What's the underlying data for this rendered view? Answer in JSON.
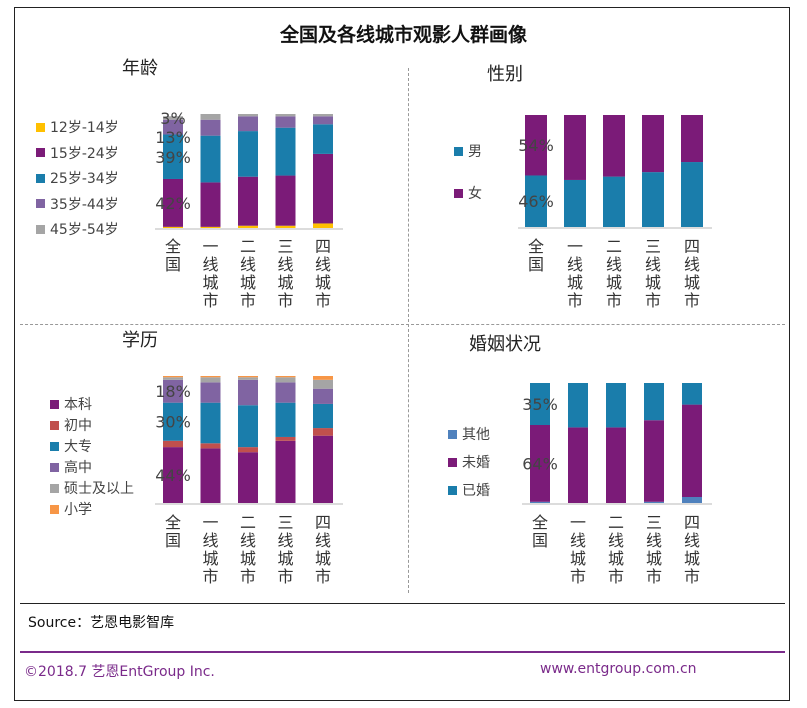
{
  "title": "全国及各线城市观影人群画像",
  "source": "Source：艺恩电影智库",
  "footer": {
    "left": "©2018.7  艺恩EntGroup Inc.",
    "right": "www.entgroup.com.cn"
  },
  "colors": {
    "purple": "#7b1b78",
    "blue": "#1a7dab",
    "lavender": "#8064a2",
    "gray": "#a5a5a5",
    "yellow": "#ffc000",
    "red": "#c0504d",
    "orange": "#f79646",
    "lightblue": "#4f81bd",
    "footer": "#7a2a8a"
  },
  "chart_data": [
    {
      "type": "bar",
      "stacked": true,
      "title": "年龄",
      "legend_position": "left",
      "categories": [
        "全国",
        "一线城市",
        "二线城市",
        "三线城市",
        "四线城市"
      ],
      "series": [
        {
          "name": "12岁-14岁",
          "color": "#ffc000",
          "values": [
            1,
            1,
            2,
            2,
            4
          ]
        },
        {
          "name": "15岁-24岁",
          "color": "#7b1b78",
          "values": [
            42,
            39,
            43,
            44,
            61
          ]
        },
        {
          "name": "25岁-34岁",
          "color": "#1a7dab",
          "values": [
            39,
            41,
            40,
            42,
            26
          ]
        },
        {
          "name": "35岁-44岁",
          "color": "#8064a2",
          "values": [
            13,
            14,
            13,
            10,
            7
          ]
        },
        {
          "name": "45岁-54岁",
          "color": "#a5a5a5",
          "values": [
            3,
            5,
            2,
            2,
            2
          ]
        }
      ],
      "data_labels": [
        {
          "series": "45岁-54岁",
          "category": "全国",
          "text": "3%"
        },
        {
          "series": "35岁-44岁",
          "category": "全国",
          "text": "13%"
        },
        {
          "series": "25岁-34岁",
          "category": "全国",
          "text": "39%"
        },
        {
          "series": "15岁-24岁",
          "category": "全国",
          "text": "42%"
        }
      ],
      "ylim": [
        0,
        100
      ]
    },
    {
      "type": "bar",
      "stacked": true,
      "title": "性别",
      "legend_position": "left",
      "categories": [
        "全国",
        "一线城市",
        "二线城市",
        "三线城市",
        "四线城市"
      ],
      "series": [
        {
          "name": "男",
          "color": "#1a7dab",
          "values": [
            46,
            42,
            45,
            49,
            58
          ]
        },
        {
          "name": "女",
          "color": "#7b1b78",
          "values": [
            54,
            58,
            55,
            51,
            42
          ]
        }
      ],
      "data_labels": [
        {
          "series": "女",
          "category": "全国",
          "text": "54%"
        },
        {
          "series": "男",
          "category": "全国",
          "text": "46%"
        }
      ],
      "ylim": [
        0,
        100
      ]
    },
    {
      "type": "bar",
      "stacked": true,
      "title": "学历",
      "legend_position": "left",
      "categories": [
        "全国",
        "一线城市",
        "二线城市",
        "三线城市",
        "四线城市"
      ],
      "series": [
        {
          "name": "本科",
          "color": "#7b1b78",
          "values": [
            44,
            43,
            40,
            49,
            53
          ]
        },
        {
          "name": "初中",
          "color": "#c0504d",
          "values": [
            5,
            4,
            4,
            3,
            6
          ]
        },
        {
          "name": "大专",
          "color": "#1a7dab",
          "values": [
            30,
            32,
            33,
            27,
            19
          ]
        },
        {
          "name": "高中",
          "color": "#8064a2",
          "values": [
            18,
            16,
            20,
            16,
            12
          ]
        },
        {
          "name": "硕士及以上",
          "color": "#a5a5a5",
          "values": [
            2,
            4,
            2,
            4,
            7
          ]
        },
        {
          "name": "小学",
          "color": "#f79646",
          "values": [
            1,
            1,
            1,
            1,
            3
          ]
        }
      ],
      "data_labels": [
        {
          "series": "高中",
          "category": "全国",
          "text": "18%"
        },
        {
          "series": "大专",
          "category": "全国",
          "text": "30%"
        },
        {
          "series": "本科",
          "category": "全国",
          "text": "44%"
        }
      ],
      "ylim": [
        0,
        100
      ]
    },
    {
      "type": "bar",
      "stacked": true,
      "title": "婚姻状况",
      "legend_position": "left",
      "categories": [
        "全国",
        "一线城市",
        "二线城市",
        "三线城市",
        "四线城市"
      ],
      "series": [
        {
          "name": "其他",
          "color": "#4f81bd",
          "values": [
            1,
            0,
            0,
            1,
            5
          ]
        },
        {
          "name": "未婚",
          "color": "#7b1b78",
          "values": [
            64,
            63,
            63,
            68,
            77
          ]
        },
        {
          "name": "已婚",
          "color": "#1a7dab",
          "values": [
            35,
            37,
            37,
            31,
            18
          ]
        }
      ],
      "data_labels": [
        {
          "series": "已婚",
          "category": "全国",
          "text": "35%"
        },
        {
          "series": "未婚",
          "category": "全国",
          "text": "64%"
        }
      ],
      "ylim": [
        0,
        100
      ]
    }
  ]
}
